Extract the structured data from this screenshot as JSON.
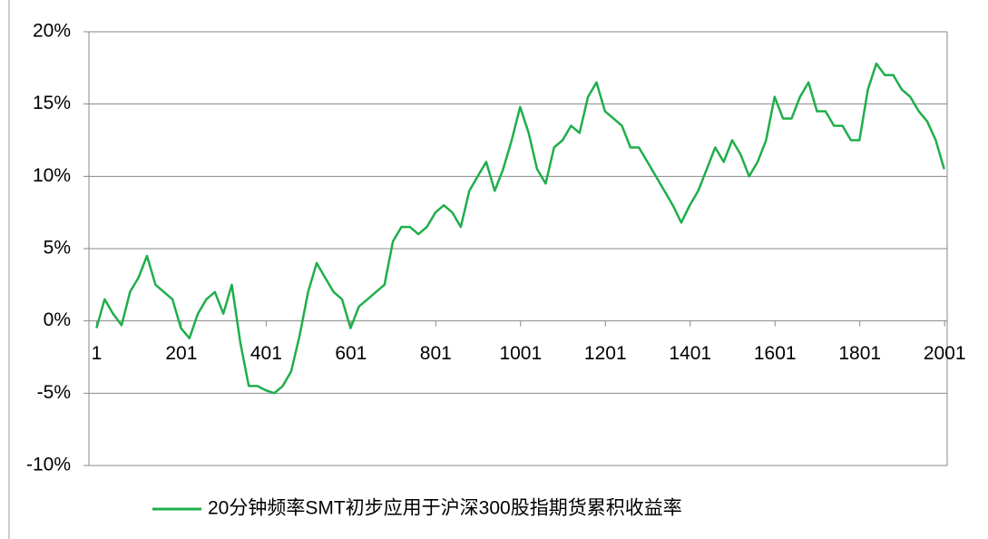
{
  "chart_data": {
    "type": "line",
    "x": [
      1,
      20,
      40,
      60,
      80,
      100,
      120,
      140,
      160,
      180,
      200,
      220,
      240,
      260,
      280,
      300,
      320,
      340,
      360,
      380,
      400,
      420,
      440,
      460,
      480,
      500,
      520,
      540,
      560,
      580,
      600,
      620,
      640,
      660,
      680,
      700,
      720,
      740,
      760,
      780,
      800,
      820,
      840,
      860,
      880,
      900,
      920,
      940,
      960,
      980,
      1000,
      1020,
      1040,
      1060,
      1080,
      1100,
      1120,
      1140,
      1160,
      1180,
      1200,
      1220,
      1240,
      1260,
      1280,
      1300,
      1320,
      1340,
      1360,
      1380,
      1400,
      1420,
      1440,
      1460,
      1480,
      1500,
      1520,
      1540,
      1560,
      1580,
      1600,
      1620,
      1640,
      1660,
      1680,
      1700,
      1720,
      1740,
      1760,
      1780,
      1800,
      1820,
      1840,
      1860,
      1880,
      1900,
      1920,
      1940,
      1960,
      1980,
      2000
    ],
    "series": [
      {
        "name": "20分钟频率SMT初步应用于沪深300股指期货累积收益率",
        "color": "#1fae4a",
        "values": [
          -0.5,
          1.5,
          0.5,
          -0.3,
          2,
          3,
          4.5,
          2.5,
          2,
          1.5,
          -0.5,
          -1.2,
          0.5,
          1.5,
          2,
          0.5,
          2.5,
          -1.5,
          -4.5,
          -4.5,
          -4.8,
          -5,
          -4.5,
          -3.5,
          -1,
          2,
          4,
          3,
          2,
          1.5,
          -0.5,
          1,
          1.5,
          2,
          2.5,
          5.5,
          6.5,
          6.5,
          6,
          6.5,
          7.5,
          8,
          7.5,
          6.5,
          9,
          10,
          11,
          9,
          10.5,
          12.5,
          14.8,
          13,
          10.5,
          9.5,
          12,
          12.5,
          13.5,
          13,
          15.5,
          16.5,
          14.5,
          14,
          13.5,
          12,
          12,
          11,
          10,
          9,
          8,
          6.8,
          8,
          9,
          10.5,
          12,
          11,
          12.5,
          11.5,
          10,
          11,
          12.5,
          15.5,
          14,
          14,
          15.5,
          16.5,
          14.5,
          14.5,
          13.5,
          13.5,
          12.5,
          12.5,
          16,
          17.8,
          17,
          17,
          16,
          15.5,
          14.5,
          13.8,
          12.5,
          10.5
        ]
      }
    ],
    "xlim": [
      -17,
      2007
    ],
    "xticks": [
      1,
      201,
      401,
      601,
      801,
      1001,
      1201,
      1401,
      1601,
      1801,
      2001
    ],
    "ylim": [
      -10,
      20
    ],
    "yticks": [
      {
        "value": -10,
        "label": "-10%"
      },
      {
        "value": -5,
        "label": "-5%"
      },
      {
        "value": 0,
        "label": "0%"
      },
      {
        "value": 5,
        "label": "5%"
      },
      {
        "value": 10,
        "label": "10%"
      },
      {
        "value": 15,
        "label": "15%"
      },
      {
        "value": 20,
        "label": "20%"
      }
    ],
    "grid": true,
    "legend": "bottom"
  }
}
